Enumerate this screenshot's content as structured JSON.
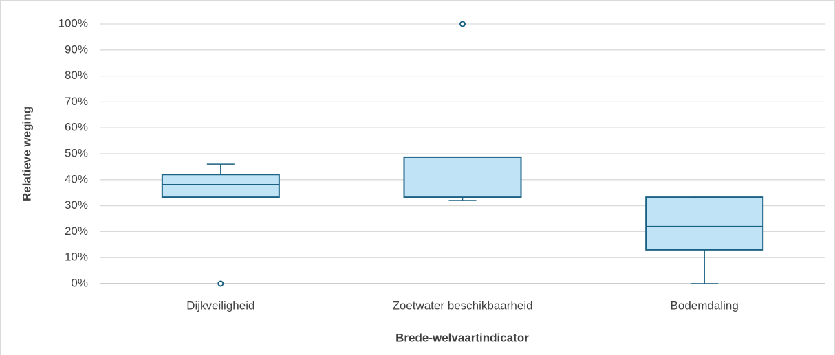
{
  "chart_data": {
    "type": "box",
    "x_label": "Brede-welvaartindicator",
    "y_label": "Relatieve weging",
    "categories": [
      "Dijkveiligheid",
      "Zoetwater beschikbaarheid",
      "Bodemdaling"
    ],
    "boxes": [
      {
        "min": 33.3,
        "q1": 33.3,
        "median": 38.1,
        "q3": 42,
        "max": 46,
        "outliers": [
          0
        ]
      },
      {
        "min": 32,
        "q1": 33.1,
        "median": 33.3,
        "q3": 48.7,
        "max": 48.7,
        "outliers": [
          100
        ]
      },
      {
        "min": 0,
        "q1": 13,
        "median": 22,
        "q3": 33.3,
        "max": 33.3,
        "outliers": []
      }
    ],
    "color": "#c0e4f5",
    "edge_color": "#1b6183",
    "ylim": [
      0,
      100
    ],
    "yticks": [
      {
        "value": 0,
        "label": "0%"
      },
      {
        "value": 10,
        "label": "10%"
      },
      {
        "value": 20,
        "label": "20%"
      },
      {
        "value": 30,
        "label": "30%"
      },
      {
        "value": 40,
        "label": "40%"
      },
      {
        "value": 50,
        "label": "50%"
      },
      {
        "value": 60,
        "label": "60%"
      },
      {
        "value": 70,
        "label": "70%"
      },
      {
        "value": 80,
        "label": "80%"
      },
      {
        "value": 90,
        "label": "90%"
      },
      {
        "value": 100,
        "label": "100%"
      }
    ],
    "grid": true
  }
}
